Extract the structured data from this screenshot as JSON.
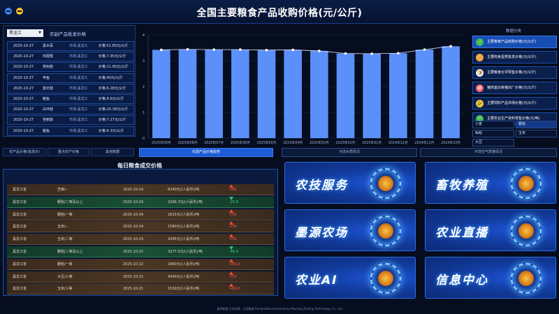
{
  "header": {
    "title": "全国主要粮食产品收购价格(元/公斤)"
  },
  "price_panel": {
    "province": "黑龙江",
    "title": "农副产品批发价格",
    "rows": [
      {
        "date": "2025-10-27",
        "market": "黑木耳",
        "region": "市场:黑龙江",
        "price": "价格:51.85元/公斤"
      },
      {
        "date": "2025-10-27",
        "market": "鸡翅根",
        "region": "市场:黑龙江",
        "price": "价格:7.95元/公斤"
      },
      {
        "date": "2025-10-27",
        "market": "茶树菇",
        "region": "市场:黑龙江",
        "price": "价格:11.95元/公斤"
      },
      {
        "date": "2025-10-27",
        "market": "甲鱼",
        "region": "市场:黑龙江",
        "price": "价格:90元/公斤"
      },
      {
        "date": "2025-10-27",
        "market": "金针菇",
        "region": "市场:黑龙江",
        "price": "价格:6.28元/公斤"
      },
      {
        "date": "2025-10-27",
        "market": "鲢鱼",
        "region": "市场:黑龙江",
        "price": "价格:8.6元/公斤"
      },
      {
        "date": "2025-10-27",
        "market": "白环菇",
        "region": "市场:黑龙江",
        "price": "价格:20.38元/公斤"
      },
      {
        "date": "2025-10-27",
        "market": "杏鲍菇",
        "region": "市场:黑龙江",
        "price": "价格:7.27元/公斤"
      },
      {
        "date": "2025-10-27",
        "market": "鲅鱼",
        "region": "市场:黑龙江",
        "price": "价格:6.3元/公斤"
      }
    ]
  },
  "left_tabs": [
    "农产品价格(批发价)",
    "重点农产价格",
    "其他数据"
  ],
  "chart_data": {
    "type": "bar",
    "categories": [
      "2025年09月",
      "2025年08月",
      "2025年07月",
      "2025年06月",
      "2025年05月",
      "2025年04月",
      "2025年03月",
      "2025年02月",
      "2025年01月",
      "2024年12月",
      "2024年11月",
      "2024年10月"
    ],
    "values": [
      3.42,
      3.44,
      3.43,
      3.43,
      3.41,
      3.42,
      3.38,
      3.28,
      3.27,
      3.29,
      3.43,
      3.56
    ],
    "line_values": [
      3.42,
      3.44,
      3.43,
      3.43,
      3.41,
      3.42,
      3.38,
      3.28,
      3.27,
      3.29,
      3.43,
      3.56
    ],
    "ylim": [
      0,
      4
    ],
    "yticks": [
      "0",
      "1",
      "2",
      "3",
      "4"
    ],
    "colors": {
      "bar": "#5b8ff9",
      "line": "#dfe8ff",
      "grid": "#1f2f52"
    }
  },
  "category_panel": {
    "title": "数据分类",
    "items": [
      {
        "label": "主要粮食产品收购价格(元/公斤)",
        "icon": "grain-icon",
        "icon_color": "#2fbf6a",
        "glyph": "🌾"
      },
      {
        "label": "主要肉食蛋类批发价格(元/公斤)",
        "icon": "egg-icon",
        "icon_color": "#f2a93b",
        "glyph": "🥚"
      },
      {
        "label": "主要粮食价评零售价格(元/公斤)",
        "icon": "bread-icon",
        "icon_color": "#d9e6ff",
        "glyph": "🍞"
      },
      {
        "label": "猪肉室白条猪出厂价格(元/公斤)",
        "icon": "pig-icon",
        "icon_color": "#ff5b7a",
        "glyph": "🐖"
      },
      {
        "label": "主要饲料产品市场价格(元/公斤)",
        "icon": "feed-icon",
        "icon_color": "#f6c445",
        "glyph": "🌽"
      },
      {
        "label": "主要农业生产资料零售价格(元/吨)",
        "icon": "plant-icon",
        "icon_color": "#2fbf6a",
        "glyph": "🌱"
      }
    ],
    "grains": [
      {
        "label": "小麦",
        "active": false
      },
      {
        "label": "粳稻",
        "active": true
      },
      {
        "label": "籼稻",
        "active": false
      },
      {
        "label": "玉米",
        "active": false
      },
      {
        "label": "大豆",
        "active": false
      }
    ]
  },
  "middle_tabs": [
    {
      "label": "农副产品价格趋势",
      "active": true
    },
    {
      "label": "河流水质情况",
      "active": false
    },
    {
      "label": "环境空气质量情况",
      "active": false
    }
  ],
  "daily_panel": {
    "title": "每日粮食成交价格",
    "rows": [
      {
        "province": "黑龙江省",
        "product": "芝麻/--",
        "date": "2025-10-24",
        "price": "6340元/(人民币)/吨",
        "change": "+60",
        "dir": "up"
      },
      {
        "province": "黑龙江省",
        "product": "粳稻/二等及以上",
        "date": "2025-10-24",
        "price": "3266.7元/(人民币)/吨",
        "change": "-20.8",
        "dir": "down"
      },
      {
        "province": "黑龙江省",
        "product": "粳稻/一等",
        "date": "2025-10-24",
        "price": "2625元/(人民币)/吨",
        "change": "+59",
        "dir": "up"
      },
      {
        "province": "黑龙江省",
        "product": "玉米/--",
        "date": "2025-10-24",
        "price": "1580元/(人民币)/吨",
        "change": "+34",
        "dir": "up"
      },
      {
        "province": "黑龙江省",
        "product": "玉米/二等",
        "date": "2025-10-23",
        "price": "2095元/(人民币)/吨",
        "change": "+56",
        "dir": "up"
      },
      {
        "province": "黑龙江省",
        "product": "粳稻/二等及以上",
        "date": "2025-10-22",
        "price": "3277.5元/(人民币)/吨",
        "change": "-66.9",
        "dir": "down"
      },
      {
        "province": "黑龙江省",
        "product": "粳稻/一等",
        "date": "2025-10-22",
        "price": "2960元/(人民币)/吨",
        "change": "+60.0",
        "dir": "up"
      },
      {
        "province": "黑龙江省",
        "product": "大豆/三等",
        "date": "2025-10-22",
        "price": "4040元/(人民币)/吨",
        "change": "+53",
        "dir": "up"
      },
      {
        "province": "黑龙江省",
        "product": "玉米/三等",
        "date": "2025-10-21",
        "price": "1530元/(人民币)/吨",
        "change": "+60.0",
        "dir": "up"
      }
    ]
  },
  "service_cards": [
    {
      "label": "农技服务",
      "icon": "crop-icon"
    },
    {
      "label": "畜牧养殖",
      "icon": "livestock-icon"
    },
    {
      "label": "墨源农场",
      "icon": "farm-icon"
    },
    {
      "label": "农业直播",
      "icon": "live-icon"
    },
    {
      "label": "农业AI",
      "icon": "ai-icon"
    },
    {
      "label": "信息中心",
      "icon": "info-icon"
    }
  ],
  "footer": {
    "text": "墨源数据 已经同意，与此数据 Design&Development by Moxiang Zhiding Technology Co., Ltd"
  }
}
